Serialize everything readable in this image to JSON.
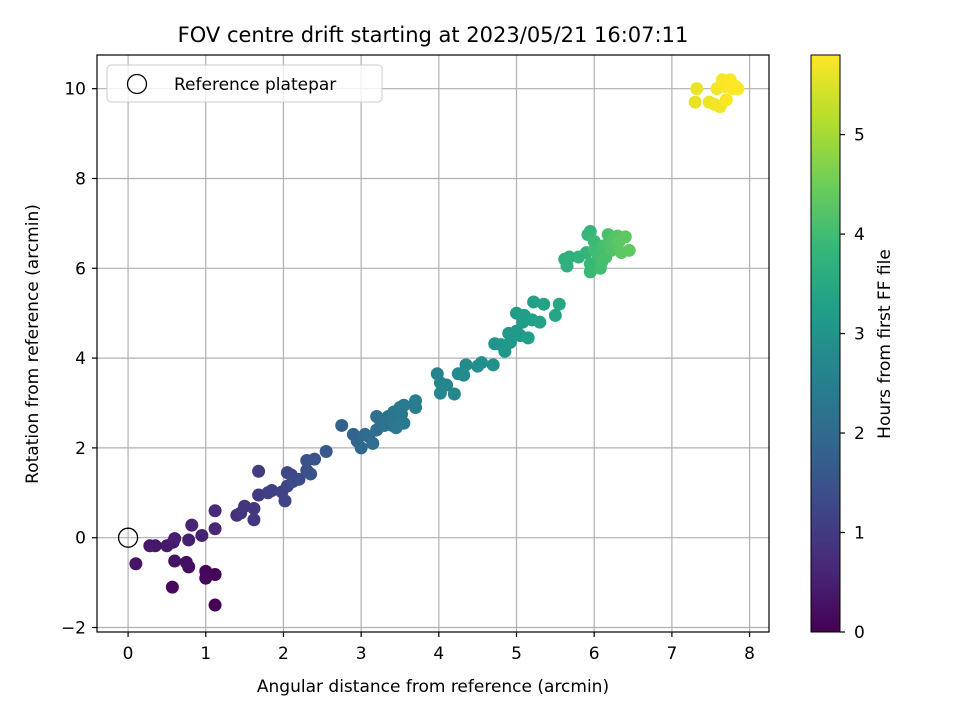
{
  "chart_data": {
    "type": "scatter",
    "title": "FOV centre drift starting at 2023/05/21 16:07:11",
    "xlabel": "Angular distance from reference (arcmin)",
    "ylabel": "Rotation from reference (arcmin)",
    "xlim": [
      -0.4,
      8.25
    ],
    "ylim": [
      -2.1,
      10.75
    ],
    "xticks": [
      0,
      1,
      2,
      3,
      4,
      5,
      6,
      7,
      8
    ],
    "yticks": [
      -2,
      0,
      2,
      4,
      6,
      8,
      10
    ],
    "grid": true,
    "legend": {
      "position": "top-left",
      "entries": [
        {
          "label": "Reference platepar",
          "marker": "open-circle"
        }
      ]
    },
    "reference_point": {
      "x": 0,
      "y": 0
    },
    "colorbar": {
      "label": "Hours from first FF file",
      "range": [
        0,
        5.8
      ],
      "ticks": [
        0,
        1,
        2,
        3,
        4,
        5
      ],
      "colormap": "viridis"
    },
    "colormap_stops": [
      "#440154",
      "#482878",
      "#3e4989",
      "#31688e",
      "#26828e",
      "#1f9e89",
      "#35b779",
      "#6ece58",
      "#b5de2b",
      "#fde725"
    ],
    "points": [
      {
        "x": 1.12,
        "y": -1.5,
        "c": 0.0
      },
      {
        "x": 1.12,
        "y": -0.82,
        "c": 0.05
      },
      {
        "x": 1.0,
        "y": -0.75,
        "c": 0.1
      },
      {
        "x": 1.0,
        "y": -0.9,
        "c": 0.12
      },
      {
        "x": 0.57,
        "y": -1.1,
        "c": 0.15
      },
      {
        "x": 0.78,
        "y": -0.65,
        "c": 0.2
      },
      {
        "x": 0.75,
        "y": -0.55,
        "c": 0.25
      },
      {
        "x": 0.6,
        "y": -0.52,
        "c": 0.28
      },
      {
        "x": 0.1,
        "y": -0.58,
        "c": 0.3
      },
      {
        "x": 0.28,
        "y": -0.18,
        "c": 0.35
      },
      {
        "x": 0.35,
        "y": -0.18,
        "c": 0.38
      },
      {
        "x": 0.5,
        "y": -0.18,
        "c": 0.4
      },
      {
        "x": 0.58,
        "y": -0.1,
        "c": 0.45
      },
      {
        "x": 0.6,
        "y": -0.02,
        "c": 0.48
      },
      {
        "x": 0.78,
        "y": -0.05,
        "c": 0.5
      },
      {
        "x": 0.95,
        "y": 0.05,
        "c": 0.55
      },
      {
        "x": 0.82,
        "y": 0.28,
        "c": 0.58
      },
      {
        "x": 1.12,
        "y": 0.2,
        "c": 0.62
      },
      {
        "x": 1.12,
        "y": 0.6,
        "c": 0.68
      },
      {
        "x": 1.4,
        "y": 0.5,
        "c": 0.8
      },
      {
        "x": 1.45,
        "y": 0.55,
        "c": 0.85
      },
      {
        "x": 1.5,
        "y": 0.7,
        "c": 0.9
      },
      {
        "x": 1.62,
        "y": 0.4,
        "c": 0.95
      },
      {
        "x": 1.62,
        "y": 0.65,
        "c": 0.95
      },
      {
        "x": 1.68,
        "y": 0.95,
        "c": 1.0
      },
      {
        "x": 1.68,
        "y": 1.48,
        "c": 1.05
      },
      {
        "x": 1.8,
        "y": 1.0,
        "c": 1.1
      },
      {
        "x": 1.85,
        "y": 1.05,
        "c": 1.12
      },
      {
        "x": 1.98,
        "y": 1.02,
        "c": 1.15
      },
      {
        "x": 2.02,
        "y": 0.82,
        "c": 1.18
      },
      {
        "x": 2.05,
        "y": 1.15,
        "c": 1.2
      },
      {
        "x": 2.05,
        "y": 1.45,
        "c": 1.25
      },
      {
        "x": 2.1,
        "y": 1.4,
        "c": 1.25
      },
      {
        "x": 2.12,
        "y": 1.25,
        "c": 1.3
      },
      {
        "x": 2.2,
        "y": 1.3,
        "c": 1.32
      },
      {
        "x": 2.3,
        "y": 1.5,
        "c": 1.4
      },
      {
        "x": 2.3,
        "y": 1.72,
        "c": 1.45
      },
      {
        "x": 2.35,
        "y": 1.42,
        "c": 1.48
      },
      {
        "x": 2.4,
        "y": 1.75,
        "c": 1.5
      },
      {
        "x": 2.55,
        "y": 1.92,
        "c": 1.65
      },
      {
        "x": 2.75,
        "y": 2.5,
        "c": 1.8
      },
      {
        "x": 2.9,
        "y": 2.3,
        "c": 1.85
      },
      {
        "x": 2.95,
        "y": 2.15,
        "c": 1.9
      },
      {
        "x": 3.0,
        "y": 2.0,
        "c": 1.95
      },
      {
        "x": 3.05,
        "y": 2.3,
        "c": 2.0
      },
      {
        "x": 3.1,
        "y": 2.25,
        "c": 2.05
      },
      {
        "x": 3.15,
        "y": 2.1,
        "c": 2.08
      },
      {
        "x": 3.2,
        "y": 2.4,
        "c": 2.1
      },
      {
        "x": 3.2,
        "y": 2.7,
        "c": 2.12
      },
      {
        "x": 3.25,
        "y": 2.6,
        "c": 2.15
      },
      {
        "x": 3.3,
        "y": 2.5,
        "c": 2.18
      },
      {
        "x": 3.35,
        "y": 2.7,
        "c": 2.2
      },
      {
        "x": 3.4,
        "y": 2.5,
        "c": 2.22
      },
      {
        "x": 3.42,
        "y": 2.8,
        "c": 2.25
      },
      {
        "x": 3.45,
        "y": 2.62,
        "c": 2.28
      },
      {
        "x": 3.5,
        "y": 2.9,
        "c": 2.3
      },
      {
        "x": 3.52,
        "y": 2.75,
        "c": 2.32
      },
      {
        "x": 3.55,
        "y": 2.95,
        "c": 2.35
      },
      {
        "x": 3.45,
        "y": 2.45,
        "c": 2.35
      },
      {
        "x": 3.55,
        "y": 2.55,
        "c": 2.38
      },
      {
        "x": 3.7,
        "y": 2.9,
        "c": 2.42
      },
      {
        "x": 3.7,
        "y": 3.05,
        "c": 2.45
      },
      {
        "x": 3.98,
        "y": 3.65,
        "c": 2.6
      },
      {
        "x": 4.02,
        "y": 3.45,
        "c": 2.65
      },
      {
        "x": 4.02,
        "y": 3.22,
        "c": 2.68
      },
      {
        "x": 4.1,
        "y": 3.4,
        "c": 2.7
      },
      {
        "x": 4.2,
        "y": 3.2,
        "c": 2.72
      },
      {
        "x": 4.25,
        "y": 3.65,
        "c": 2.75
      },
      {
        "x": 4.32,
        "y": 3.62,
        "c": 2.78
      },
      {
        "x": 4.35,
        "y": 3.85,
        "c": 2.8
      },
      {
        "x": 4.5,
        "y": 3.82,
        "c": 2.85
      },
      {
        "x": 4.55,
        "y": 3.9,
        "c": 2.88
      },
      {
        "x": 4.7,
        "y": 3.85,
        "c": 2.92
      },
      {
        "x": 4.72,
        "y": 4.32,
        "c": 3.0
      },
      {
        "x": 4.8,
        "y": 4.3,
        "c": 3.02
      },
      {
        "x": 4.85,
        "y": 4.15,
        "c": 3.05
      },
      {
        "x": 4.9,
        "y": 4.55,
        "c": 3.08
      },
      {
        "x": 4.92,
        "y": 4.35,
        "c": 3.1
      },
      {
        "x": 5.0,
        "y": 4.6,
        "c": 3.12
      },
      {
        "x": 5.0,
        "y": 5.0,
        "c": 3.15
      },
      {
        "x": 5.05,
        "y": 4.5,
        "c": 3.18
      },
      {
        "x": 5.08,
        "y": 4.8,
        "c": 3.2
      },
      {
        "x": 5.1,
        "y": 4.95,
        "c": 3.22
      },
      {
        "x": 5.15,
        "y": 4.45,
        "c": 3.25
      },
      {
        "x": 5.2,
        "y": 4.85,
        "c": 3.28
      },
      {
        "x": 5.22,
        "y": 5.25,
        "c": 3.3
      },
      {
        "x": 5.3,
        "y": 4.8,
        "c": 3.32
      },
      {
        "x": 5.35,
        "y": 5.2,
        "c": 3.35
      },
      {
        "x": 5.5,
        "y": 4.95,
        "c": 3.4
      },
      {
        "x": 5.55,
        "y": 5.2,
        "c": 3.42
      },
      {
        "x": 5.62,
        "y": 6.2,
        "c": 3.65
      },
      {
        "x": 5.65,
        "y": 6.05,
        "c": 3.68
      },
      {
        "x": 5.68,
        "y": 6.25,
        "c": 3.7
      },
      {
        "x": 5.8,
        "y": 6.25,
        "c": 3.75
      },
      {
        "x": 5.9,
        "y": 6.35,
        "c": 3.8
      },
      {
        "x": 5.92,
        "y": 6.75,
        "c": 3.85
      },
      {
        "x": 5.95,
        "y": 6.82,
        "c": 3.88
      },
      {
        "x": 5.95,
        "y": 6.1,
        "c": 3.9
      },
      {
        "x": 5.95,
        "y": 5.92,
        "c": 3.92
      },
      {
        "x": 6.0,
        "y": 6.6,
        "c": 3.95
      },
      {
        "x": 6.0,
        "y": 6.4,
        "c": 3.98
      },
      {
        "x": 6.05,
        "y": 6.3,
        "c": 4.0
      },
      {
        "x": 6.08,
        "y": 6.0,
        "c": 4.02
      },
      {
        "x": 6.1,
        "y": 6.15,
        "c": 4.05
      },
      {
        "x": 6.12,
        "y": 6.5,
        "c": 4.08
      },
      {
        "x": 6.15,
        "y": 6.25,
        "c": 4.1
      },
      {
        "x": 6.18,
        "y": 6.75,
        "c": 4.12
      },
      {
        "x": 6.2,
        "y": 6.55,
        "c": 4.15
      },
      {
        "x": 6.22,
        "y": 6.4,
        "c": 4.18
      },
      {
        "x": 6.25,
        "y": 6.65,
        "c": 4.2
      },
      {
        "x": 6.28,
        "y": 6.5,
        "c": 4.22
      },
      {
        "x": 6.3,
        "y": 6.72,
        "c": 4.25
      },
      {
        "x": 6.32,
        "y": 6.6,
        "c": 4.28
      },
      {
        "x": 6.35,
        "y": 6.35,
        "c": 4.3
      },
      {
        "x": 6.4,
        "y": 6.7,
        "c": 4.32
      },
      {
        "x": 6.45,
        "y": 6.4,
        "c": 4.35
      },
      {
        "x": 7.3,
        "y": 9.7,
        "c": 5.6
      },
      {
        "x": 7.32,
        "y": 10.0,
        "c": 5.62
      },
      {
        "x": 7.48,
        "y": 9.7,
        "c": 5.65
      },
      {
        "x": 7.55,
        "y": 9.65,
        "c": 5.68
      },
      {
        "x": 7.58,
        "y": 10.0,
        "c": 5.7
      },
      {
        "x": 7.62,
        "y": 9.6,
        "c": 5.72
      },
      {
        "x": 7.65,
        "y": 10.2,
        "c": 5.74
      },
      {
        "x": 7.68,
        "y": 10.05,
        "c": 5.75
      },
      {
        "x": 7.7,
        "y": 9.75,
        "c": 5.76
      },
      {
        "x": 7.72,
        "y": 10.1,
        "c": 5.78
      },
      {
        "x": 7.75,
        "y": 10.2,
        "c": 5.78
      },
      {
        "x": 7.78,
        "y": 10.0,
        "c": 5.79
      },
      {
        "x": 7.82,
        "y": 10.05,
        "c": 5.8
      },
      {
        "x": 7.85,
        "y": 10.0,
        "c": 5.8
      }
    ]
  }
}
